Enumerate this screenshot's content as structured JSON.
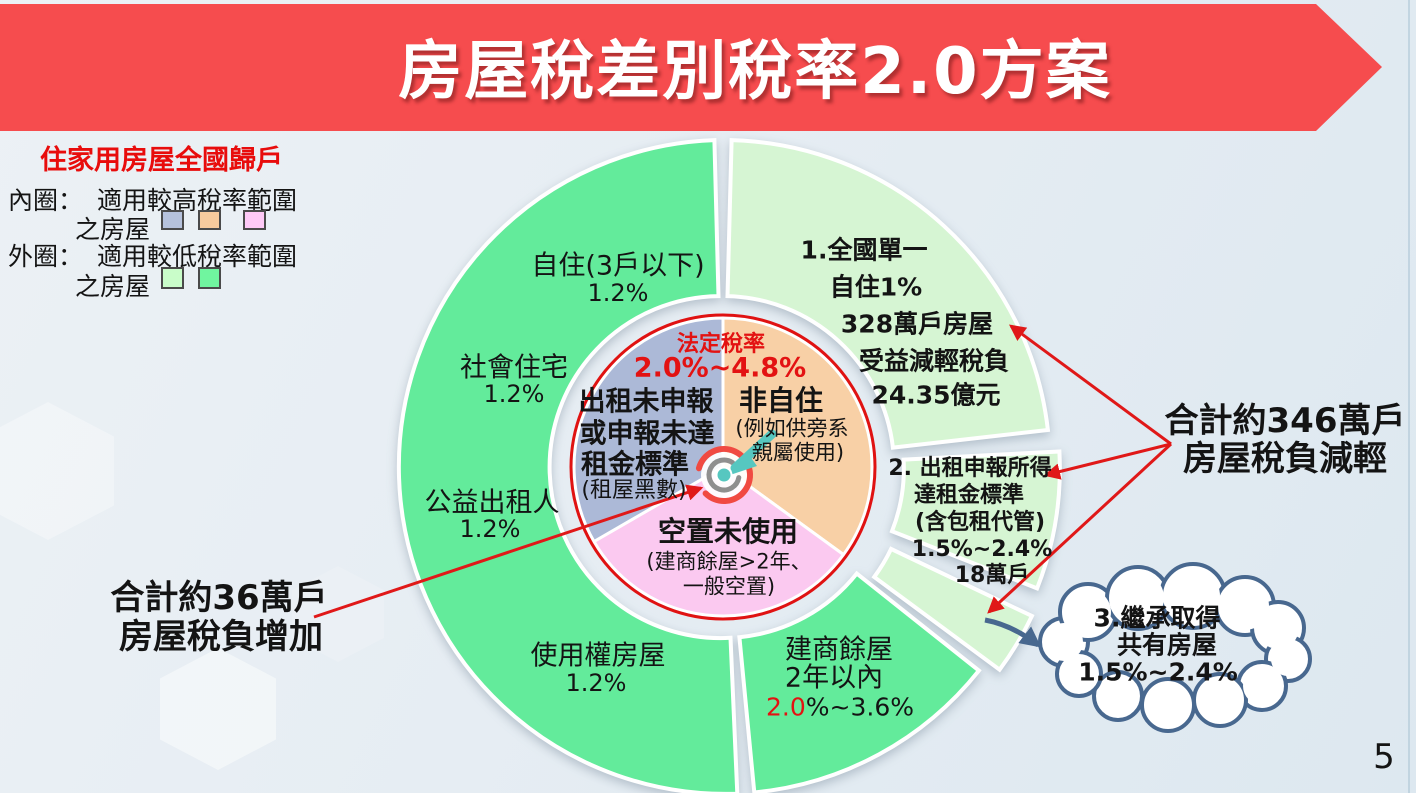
{
  "slide": {
    "title": "房屋稅差別稅率2.0方案",
    "page_number": "5"
  },
  "colors": {
    "banner_red": "#f64c4e",
    "legend_title_red": "#e80c0c",
    "outer_green": "#63eb9b",
    "outer_light_green": "#d6f5d3",
    "inner_blue_gray": "#acb9d7",
    "inner_orange": "#f8d0a6",
    "inner_pink": "#fbc9f0",
    "statutory_red": "#e31212",
    "arrow_red": "#e01818",
    "arrow_blue": "#48688f"
  },
  "legend": {
    "title": "住家用房屋全國歸戶",
    "inner_label": "內圈：",
    "inner_text": "適用較高稅率範圍",
    "inner_text2": "之房屋",
    "outer_label": "外圈：",
    "outer_text": "適用較低稅率範圍",
    "outer_text2": "之房屋",
    "inner_swatches": [
      "#b6c2dc",
      "#f8cb9d",
      "#fec9f6"
    ],
    "outer_swatches": [
      "#c9fdc9",
      "#70f59f"
    ]
  },
  "annotations": {
    "decrease_total_line1": "合計約346萬戶",
    "decrease_total_line2": "房屋稅負減輕",
    "increase_total_line1": "合計約36萬戶",
    "increase_total_line2": "房屋稅負增加",
    "cloud_line1": "3.繼承取得",
    "cloud_line2": "共有房屋",
    "cloud_line3": "1.5%~2.4%"
  },
  "chart_data": {
    "type": "donut",
    "title": "住家用房屋全國歸戶",
    "center_note": {
      "label": "法定稅率",
      "range": "2.0%~4.8%"
    },
    "inner_ring": {
      "rental_unreported": {
        "lines": [
          "出租未申報",
          "或申報未達",
          "租金標準"
        ],
        "sub": "(租屋黑數)",
        "color": "#acb9d7"
      },
      "non_self_use": {
        "title": "非自住",
        "sub1": "(例如供旁系",
        "sub2": "親屬使用)",
        "color": "#f8d0a6"
      },
      "vacant": {
        "title": "空置未使用",
        "sub1": "(建商餘屋>2年、",
        "sub2": "一般空置)",
        "color": "#fbc9f0"
      }
    },
    "outer_ring": {
      "self_use": {
        "label": "自住(3戶以下)",
        "rate": "1.2%"
      },
      "social_housing": {
        "label": "社會住宅",
        "rate": "1.2%"
      },
      "public_welfare_landlord": {
        "label": "公益出租人",
        "rate": "1.2%"
      },
      "usage_right": {
        "label": "使用權房屋",
        "rate": "1.2%"
      },
      "builder_within_2yr": {
        "label1": "建商餘屋",
        "label2": "2年以內",
        "rate_red": "2.0",
        "rate_rest": "%~3.6%"
      },
      "national_single": {
        "lines": [
          "1.全國單一",
          "自住1%",
          "328萬戶房屋",
          "受益減輕稅負",
          "24.35億元"
        ]
      },
      "rental_reported": {
        "lines": [
          "2. 出租申報所得",
          "達租金標準",
          "(含包租代管)",
          "1.5%~2.4%",
          "18萬戶"
        ]
      }
    },
    "geometry": {
      "center": [
        723,
        467
      ],
      "pie_radius": 149,
      "red_circle_radius": 152,
      "ring_inner_radius": 171,
      "ring_outer_radius": 327,
      "inner_segments": [
        {
          "name": "inner-non-self-use",
          "start": 0,
          "end": 126,
          "color": "#f8d0a6"
        },
        {
          "name": "inner-vacant",
          "start": 126,
          "end": 240,
          "color": "#fbc9f0"
        },
        {
          "name": "inner-rental-unreported",
          "start": 240,
          "end": 360,
          "color": "#acb9d7"
        }
      ],
      "outer_segments": [
        {
          "name": "outer-national-single",
          "start": 1.5,
          "end": 83.5,
          "color": "#d6f5d3",
          "offset": 0,
          "offset_angle": 0
        },
        {
          "name": "outer-rental-reported",
          "start": 87,
          "end": 111.5,
          "color": "#d6f5d3",
          "offset": 10,
          "offset_angle": 99
        },
        {
          "name": "outer-inherited-sliver",
          "start": 115.5,
          "end": 126.5,
          "color": "#d6f5d3",
          "offset": 16,
          "offset_angle": 121
        },
        {
          "name": "outer-builder-2yr",
          "start": 128.5,
          "end": 174.5,
          "color": "#63eb9b",
          "offset": 0,
          "offset_angle": 0
        },
        {
          "name": "outer-low-rate",
          "start": 177.5,
          "end": 358.5,
          "color": "#63eb9b",
          "offset": 0,
          "offset_angle": 0
        }
      ]
    }
  }
}
